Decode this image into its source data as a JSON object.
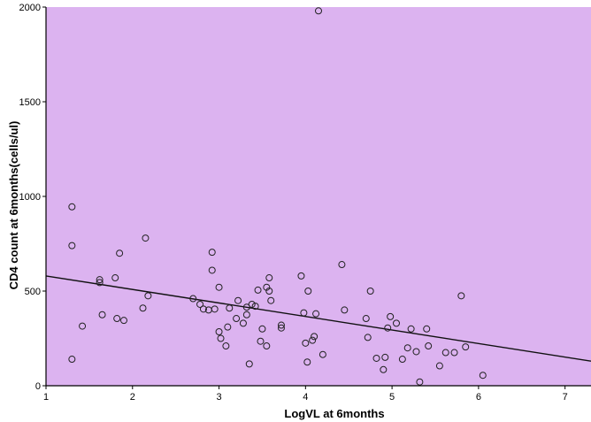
{
  "chart_data": {
    "type": "scatter",
    "title": "",
    "xlabel": "LogVL at 6months",
    "ylabel": "CD4 count at 6months(cells/ul)",
    "xlim": [
      1,
      7.3
    ],
    "ylim": [
      0,
      2000
    ],
    "x_ticks": [
      "1",
      "2",
      "3",
      "4",
      "5",
      "6",
      "7"
    ],
    "y_ticks": [
      "0",
      "500",
      "1000",
      "1500",
      "2000"
    ],
    "grid": false,
    "legend": "none",
    "colors": {
      "plot_background": "#dcb3f0",
      "marker_stroke": "#222222",
      "fit_line": "#111111",
      "axis": "#000000"
    },
    "fit_line": {
      "x": [
        1,
        7.3
      ],
      "y": [
        580,
        130
      ]
    },
    "points": [
      {
        "x": 1.3,
        "y": 945
      },
      {
        "x": 1.3,
        "y": 740
      },
      {
        "x": 1.3,
        "y": 140
      },
      {
        "x": 1.42,
        "y": 315
      },
      {
        "x": 1.62,
        "y": 560
      },
      {
        "x": 1.62,
        "y": 545
      },
      {
        "x": 1.65,
        "y": 375
      },
      {
        "x": 1.8,
        "y": 570
      },
      {
        "x": 1.82,
        "y": 355
      },
      {
        "x": 1.85,
        "y": 700
      },
      {
        "x": 1.9,
        "y": 345
      },
      {
        "x": 2.12,
        "y": 410
      },
      {
        "x": 2.15,
        "y": 780
      },
      {
        "x": 2.18,
        "y": 475
      },
      {
        "x": 2.7,
        "y": 460
      },
      {
        "x": 2.78,
        "y": 430
      },
      {
        "x": 2.82,
        "y": 405
      },
      {
        "x": 2.88,
        "y": 400
      },
      {
        "x": 2.92,
        "y": 705
      },
      {
        "x": 2.92,
        "y": 610
      },
      {
        "x": 2.95,
        "y": 405
      },
      {
        "x": 3.0,
        "y": 520
      },
      {
        "x": 3.0,
        "y": 285
      },
      {
        "x": 3.02,
        "y": 250
      },
      {
        "x": 3.08,
        "y": 210
      },
      {
        "x": 3.1,
        "y": 310
      },
      {
        "x": 3.12,
        "y": 410
      },
      {
        "x": 3.2,
        "y": 355
      },
      {
        "x": 3.22,
        "y": 450
      },
      {
        "x": 3.28,
        "y": 330
      },
      {
        "x": 3.32,
        "y": 415
      },
      {
        "x": 3.32,
        "y": 375
      },
      {
        "x": 3.35,
        "y": 115
      },
      {
        "x": 3.38,
        "y": 430
      },
      {
        "x": 3.42,
        "y": 420
      },
      {
        "x": 3.45,
        "y": 505
      },
      {
        "x": 3.48,
        "y": 235
      },
      {
        "x": 3.5,
        "y": 300
      },
      {
        "x": 3.55,
        "y": 520
      },
      {
        "x": 3.55,
        "y": 210
      },
      {
        "x": 3.58,
        "y": 500
      },
      {
        "x": 3.58,
        "y": 570
      },
      {
        "x": 3.6,
        "y": 450
      },
      {
        "x": 3.72,
        "y": 320
      },
      {
        "x": 3.72,
        "y": 305
      },
      {
        "x": 3.95,
        "y": 580
      },
      {
        "x": 3.98,
        "y": 385
      },
      {
        "x": 4.0,
        "y": 225
      },
      {
        "x": 4.02,
        "y": 125
      },
      {
        "x": 4.03,
        "y": 500
      },
      {
        "x": 4.08,
        "y": 240
      },
      {
        "x": 4.1,
        "y": 260
      },
      {
        "x": 4.12,
        "y": 380
      },
      {
        "x": 4.15,
        "y": 1980
      },
      {
        "x": 4.2,
        "y": 165
      },
      {
        "x": 4.42,
        "y": 640
      },
      {
        "x": 4.45,
        "y": 400
      },
      {
        "x": 4.7,
        "y": 355
      },
      {
        "x": 4.72,
        "y": 255
      },
      {
        "x": 4.75,
        "y": 500
      },
      {
        "x": 4.82,
        "y": 145
      },
      {
        "x": 4.9,
        "y": 85
      },
      {
        "x": 4.92,
        "y": 150
      },
      {
        "x": 4.95,
        "y": 305
      },
      {
        "x": 4.98,
        "y": 365
      },
      {
        "x": 5.05,
        "y": 330
      },
      {
        "x": 5.12,
        "y": 140
      },
      {
        "x": 5.18,
        "y": 200
      },
      {
        "x": 5.22,
        "y": 300
      },
      {
        "x": 5.28,
        "y": 180
      },
      {
        "x": 5.32,
        "y": 20
      },
      {
        "x": 5.4,
        "y": 300
      },
      {
        "x": 5.42,
        "y": 210
      },
      {
        "x": 5.55,
        "y": 105
      },
      {
        "x": 5.62,
        "y": 175
      },
      {
        "x": 5.72,
        "y": 175
      },
      {
        "x": 5.8,
        "y": 475
      },
      {
        "x": 5.85,
        "y": 205
      },
      {
        "x": 6.05,
        "y": 55
      }
    ]
  }
}
